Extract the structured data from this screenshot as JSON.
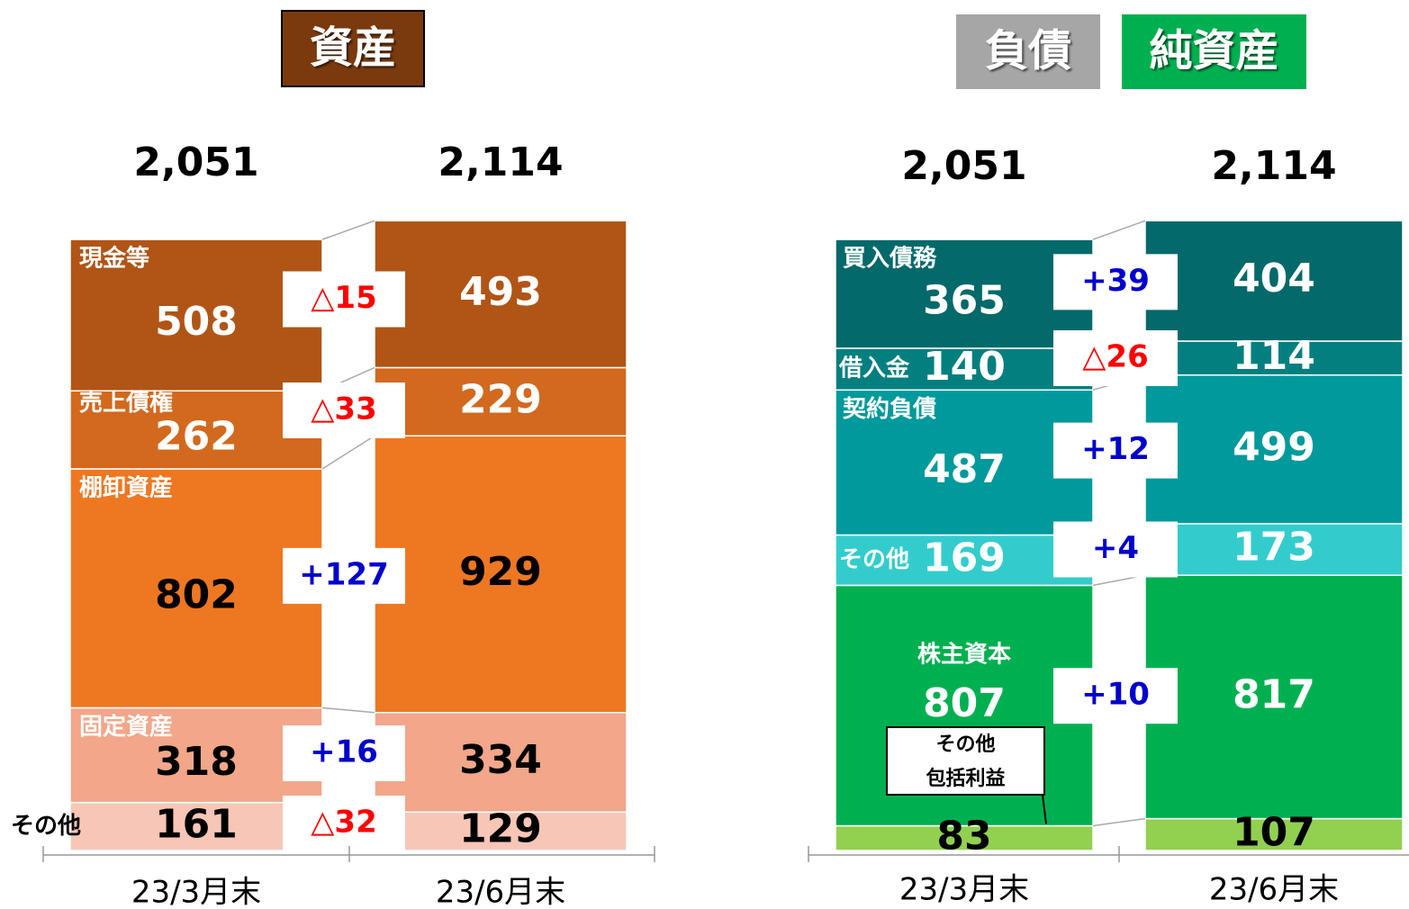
{
  "chart_data": [
    {
      "type": "stacked-bar",
      "title": [
        "資産"
      ],
      "title_colors": [
        "#7b3a0e"
      ],
      "categories": [
        "23/3月末",
        "23/6月末"
      ],
      "totals": [
        {
          "value": 2051,
          "label": "2,051"
        },
        {
          "value": 2114,
          "label": "2,114"
        }
      ],
      "series": [
        {
          "name": "その他",
          "color": "#f7c6b7",
          "text_color": "#000000",
          "values": [
            161,
            129
          ],
          "change": {
            "value": -32,
            "label": "△32"
          }
        },
        {
          "name": "固定資産",
          "color": "#f2a68a",
          "text_color": "#000000",
          "values": [
            318,
            334
          ],
          "change": {
            "value": 16,
            "label": "+16"
          }
        },
        {
          "name": "棚卸資産",
          "color": "#ee7722",
          "text_color": "#000000",
          "values": [
            802,
            929
          ],
          "change": {
            "value": 127,
            "label": "+127"
          }
        },
        {
          "name": "売上債権",
          "color": "#d2691e",
          "text_color": "#ffffff",
          "values": [
            262,
            229
          ],
          "change": {
            "value": -33,
            "label": "△33"
          }
        },
        {
          "name": "現金等",
          "color": "#b05516",
          "text_color": "#ffffff",
          "values": [
            508,
            493
          ],
          "change": {
            "value": -15,
            "label": "△15"
          }
        }
      ]
    },
    {
      "type": "stacked-bar",
      "title": [
        "負債",
        "純資産"
      ],
      "title_colors": [
        "#a6a6a6",
        "#00b050"
      ],
      "categories": [
        "23/3月末",
        "23/6月末"
      ],
      "totals": [
        {
          "value": 2051,
          "label": "2,051"
        },
        {
          "value": 2114,
          "label": "2,114"
        }
      ],
      "series": [
        {
          "name": [
            "その他",
            "包括利益"
          ],
          "color": "#92d050",
          "text_color": "#000000",
          "values": [
            83,
            107
          ]
        },
        {
          "name": "株主資本",
          "color": "#00b050",
          "text_color": "#ffffff",
          "values": [
            807,
            817
          ],
          "change": {
            "value": 10,
            "label": "+10"
          }
        },
        {
          "name": "その他",
          "color": "#33cccc",
          "text_color": "#ffffff",
          "values": [
            169,
            173
          ],
          "change": {
            "value": 4,
            "label": "+4"
          }
        },
        {
          "name": "契約負債",
          "color": "#00999c",
          "text_color": "#ffffff",
          "values": [
            487,
            499
          ],
          "change": {
            "value": 12,
            "label": "+12"
          }
        },
        {
          "name": "借入金",
          "color": "#047f7f",
          "text_color": "#ffffff",
          "values": [
            140,
            114
          ],
          "change": {
            "value": -26,
            "label": "△26"
          }
        },
        {
          "name": "買入債務",
          "color": "#04696a",
          "text_color": "#ffffff",
          "values": [
            365,
            404
          ],
          "change": {
            "value": 39,
            "label": "+39"
          }
        }
      ]
    }
  ]
}
